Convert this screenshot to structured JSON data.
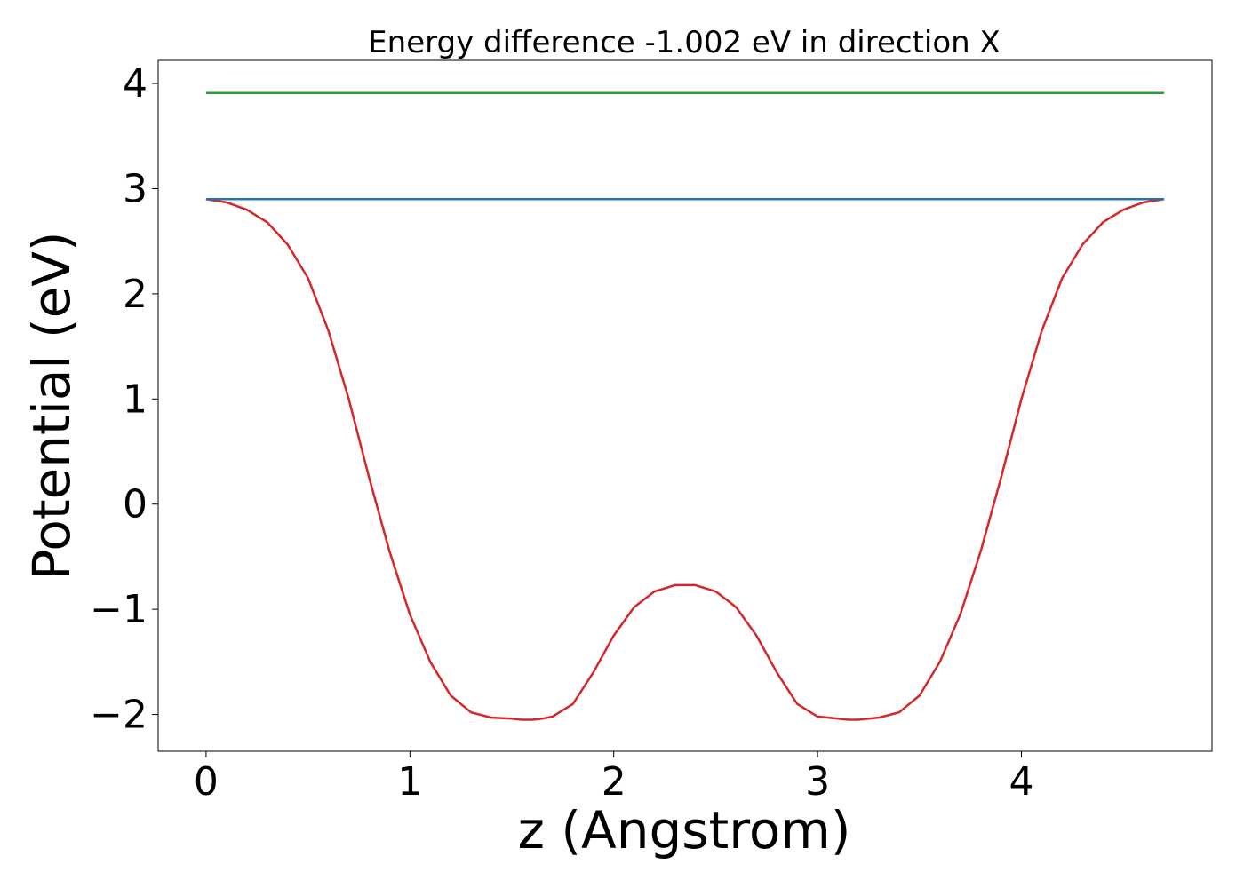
{
  "chart_data": {
    "type": "line",
    "title": "Energy difference -1.002 eV in direction X",
    "xlabel": "z (Angstrom)",
    "ylabel": "Potential (eV)",
    "xlim": [
      -0.235,
      4.935
    ],
    "ylim": [
      -2.35,
      4.22
    ],
    "xticks": [
      0,
      1,
      2,
      3,
      4
    ],
    "yticks": [
      -2,
      -1,
      0,
      1,
      2,
      3,
      4
    ],
    "xtick_labels": [
      "0",
      "1",
      "2",
      "3",
      "4"
    ],
    "ytick_labels": [
      "−2",
      "−1",
      "0",
      "1",
      "2",
      "3",
      "4"
    ],
    "grid": false,
    "series": [
      {
        "color": "#d62728",
        "x": [
          0.0,
          0.1,
          0.2,
          0.3,
          0.4,
          0.5,
          0.6,
          0.7,
          0.8,
          0.9,
          1.0,
          1.1,
          1.2,
          1.3,
          1.4,
          1.5,
          1.55,
          1.6,
          1.65,
          1.7,
          1.8,
          1.9,
          2.0,
          2.1,
          2.2,
          2.3,
          2.4,
          2.5,
          2.6,
          2.7,
          2.8,
          2.9,
          3.0,
          3.1,
          3.15,
          3.2,
          3.25,
          3.3,
          3.4,
          3.5,
          3.6,
          3.7,
          3.8,
          3.9,
          4.0,
          4.1,
          4.2,
          4.3,
          4.4,
          4.5,
          4.6,
          4.7
        ],
        "y": [
          2.9,
          2.87,
          2.8,
          2.68,
          2.47,
          2.15,
          1.65,
          1.0,
          0.25,
          -0.45,
          -1.05,
          -1.5,
          -1.82,
          -1.98,
          -2.03,
          -2.04,
          -2.05,
          -2.05,
          -2.04,
          -2.02,
          -1.9,
          -1.6,
          -1.25,
          -0.98,
          -0.83,
          -0.77,
          -0.77,
          -0.83,
          -0.98,
          -1.25,
          -1.6,
          -1.9,
          -2.02,
          -2.04,
          -2.05,
          -2.05,
          -2.04,
          -2.03,
          -1.98,
          -1.82,
          -1.5,
          -1.05,
          -0.45,
          0.25,
          1.0,
          1.65,
          2.15,
          2.47,
          2.68,
          2.8,
          2.87,
          2.9
        ]
      },
      {
        "color": "#2ca02c",
        "x": [
          0.0,
          4.7
        ],
        "y": [
          3.91,
          3.91
        ]
      },
      {
        "color": "#1f77b4",
        "x": [
          0.0,
          4.7
        ],
        "y": [
          2.9,
          2.9
        ]
      }
    ]
  }
}
